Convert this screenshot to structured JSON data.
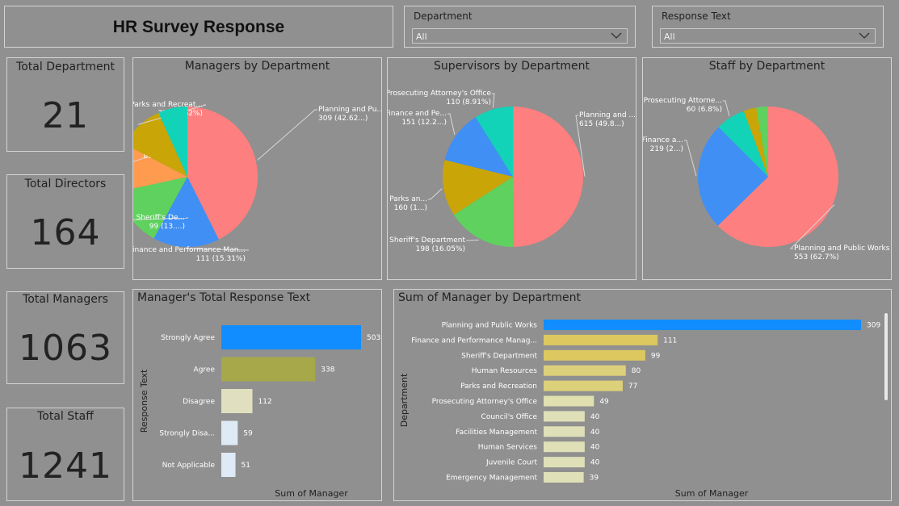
{
  "header": {
    "title": "HR Survey Response"
  },
  "slicers": {
    "department": {
      "label": "Department",
      "value": "All"
    },
    "response_text": {
      "label": "Response Text",
      "value": "All"
    }
  },
  "kpis": {
    "total_department": {
      "label": "Total Department",
      "value": "21"
    },
    "total_directors": {
      "label": "Total Directors",
      "value": "164"
    },
    "total_managers": {
      "label": "Total Managers",
      "value": "1063"
    },
    "total_staff": {
      "label": "Total Staff",
      "value": "1241"
    }
  },
  "colors": {
    "planning": "#fd7f7f",
    "finance": "#3f8ff5",
    "sheriff": "#5ed15e",
    "parks": "#c9a507",
    "human": "#ff9b4f",
    "prosecuting": "#12d3b8",
    "other": "#31c56b"
  },
  "chart_data": [
    {
      "type": "pie",
      "title": "Managers by Department",
      "slices": [
        {
          "name": "Planning and Public Works",
          "value": 309,
          "label": "Planning and Pu...",
          "sub": "309 (42.62...)",
          "color": "#fd7f7f"
        },
        {
          "name": "Finance and Performance Management",
          "value": 111,
          "label": "Finance and Performance Man...",
          "sub": "111 (15.31%)",
          "color": "#3f8ff5"
        },
        {
          "name": "Sheriff's Department",
          "value": 99,
          "label": "Sheriff's De...",
          "sub": "99 (13....)",
          "color": "#5ed15e"
        },
        {
          "name": "Human Resources",
          "value": 80,
          "label": "Human ...",
          "sub": "80 (1...)",
          "color": "#ff9b4f"
        },
        {
          "name": "Parks and Recreation",
          "value": 77,
          "label": "Parks and Recreat...",
          "sub": "77 (10.62%)",
          "color": "#c9a507"
        },
        {
          "name": "Prosecuting Attorney's Office",
          "value": 49,
          "label": "",
          "sub": "",
          "color": "#12d3b8"
        }
      ]
    },
    {
      "type": "pie",
      "title": "Supervisors by Department",
      "slices": [
        {
          "name": "Planning and Public Works",
          "value": 615,
          "label": "Planning and ...",
          "sub": "615 (49.8...)",
          "color": "#fd7f7f"
        },
        {
          "name": "Sheriff's Department",
          "value": 198,
          "label": "Sheriff's Department",
          "sub": "198 (16.05%)",
          "color": "#5ed15e"
        },
        {
          "name": "Parks and Recreation",
          "value": 160,
          "label": "Parks an...",
          "sub": "160 (1...)",
          "color": "#c9a507"
        },
        {
          "name": "Finance and Performance Management",
          "value": 151,
          "label": "Finance and Pe...",
          "sub": "151 (12.2...)",
          "color": "#3f8ff5"
        },
        {
          "name": "Prosecuting Attorney's Office",
          "value": 110,
          "label": "Prosecuting Attorney's Office",
          "sub": "110 (8.91%)",
          "color": "#12d3b8"
        }
      ]
    },
    {
      "type": "pie",
      "title": "Staff by Department",
      "slices": [
        {
          "name": "Planning and Public Works",
          "value": 553,
          "label": "Planning and Public Works",
          "sub": "553 (62.7%)",
          "color": "#fd7f7f"
        },
        {
          "name": "Finance and Performance Management",
          "value": 219,
          "label": "Finance a...",
          "sub": "219 (2...)",
          "color": "#3f8ff5"
        },
        {
          "name": "Prosecuting Attorney's Office",
          "value": 60,
          "label": "Prosecuting Attorne...",
          "sub": "60 (6.8%)",
          "color": "#12d3b8"
        },
        {
          "name": "Parks and Recreation",
          "value": 26,
          "label": "",
          "sub": "",
          "color": "#c9a507"
        },
        {
          "name": "Sheriff's Department",
          "value": 24,
          "label": "",
          "sub": "",
          "color": "#5ed15e"
        }
      ]
    },
    {
      "type": "bar",
      "orientation": "horizontal",
      "title": "Manager's Total Response Text",
      "xlabel": "Sum of Manager",
      "ylabel": "Response Text",
      "categories": [
        "Strongly Agree",
        "Agree",
        "Disagree",
        "Strongly Disa...",
        "Not Applicable"
      ],
      "values": [
        503,
        338,
        112,
        59,
        51
      ],
      "colors": [
        "#118dff",
        "#a6a84a",
        "#e0e0c0",
        "#dfeaf7",
        "#dfeaf7"
      ],
      "xlim": [
        0,
        503
      ]
    },
    {
      "type": "bar",
      "orientation": "horizontal",
      "title": "Sum of Manager by Department",
      "xlabel": "Sum of Manager",
      "ylabel": "Department",
      "categories": [
        "Planning and Public Works",
        "Finance and Performance Manag...",
        "Sheriff's Department",
        "Human Resources",
        "Parks and Recreation",
        "Prosecuting Attorney's Office",
        "Council's Office",
        "Facilities Management",
        "Human Services",
        "Juvenile Court",
        "Emergency Management"
      ],
      "values": [
        309,
        111,
        99,
        80,
        77,
        49,
        40,
        40,
        40,
        40,
        39
      ],
      "colors": [
        "#118dff",
        "#dcc85e",
        "#dcc85e",
        "#ddd07a",
        "#ddd07a",
        "#e0e0b0",
        "#e0e0b8",
        "#e0e0b8",
        "#e0e0b8",
        "#e0e0b8",
        "#e0e0b8"
      ],
      "xlim": [
        0,
        309
      ]
    }
  ]
}
